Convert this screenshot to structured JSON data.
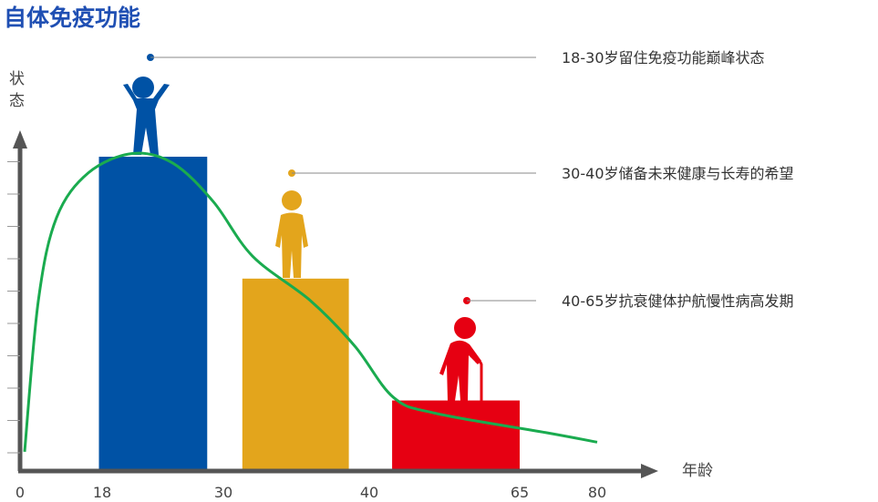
{
  "chart_data": {
    "type": "bar",
    "title": "自体免疫功能",
    "ylabel": "状态",
    "xlabel": "年龄",
    "x_ticks": [
      0,
      18,
      30,
      40,
      65,
      80
    ],
    "ylim": [
      0,
      1
    ],
    "grid": false,
    "bars": [
      {
        "x_start": 17.3,
        "x_end": 28.4,
        "value": 0.98,
        "color": "#0052a5",
        "figure": "cheering-person-icon",
        "annotation": "18-30岁留住免疫功能巅峰状态"
      },
      {
        "x_start": 31.3,
        "x_end": 38.6,
        "value": 0.6,
        "color": "#e3a51c",
        "figure": "standing-person-icon",
        "annotation": "30-40岁储备未来健康与长寿的希望"
      },
      {
        "x_start": 43.8,
        "x_end": 65,
        "value": 0.22,
        "color": "#e60012",
        "figure": "elderly-person-with-cane-icon",
        "annotation": "40-65岁抗衰健体护航慢性病高发期"
      }
    ],
    "curve": {
      "color": "#1aab4f",
      "points": [
        [
          1,
          0.06
        ],
        [
          4,
          0.53
        ],
        [
          8,
          0.79
        ],
        [
          15,
          0.93
        ],
        [
          21,
          0.99
        ],
        [
          25,
          0.96
        ],
        [
          29,
          0.84
        ],
        [
          32,
          0.67
        ],
        [
          36,
          0.53
        ],
        [
          39,
          0.39
        ],
        [
          44,
          0.23
        ],
        [
          51,
          0.18
        ],
        [
          70,
          0.12
        ],
        [
          80,
          0.09
        ]
      ]
    }
  },
  "colors": {
    "title": "#1f4fb3",
    "axis": "#555555",
    "annotation_line": "#888888"
  }
}
